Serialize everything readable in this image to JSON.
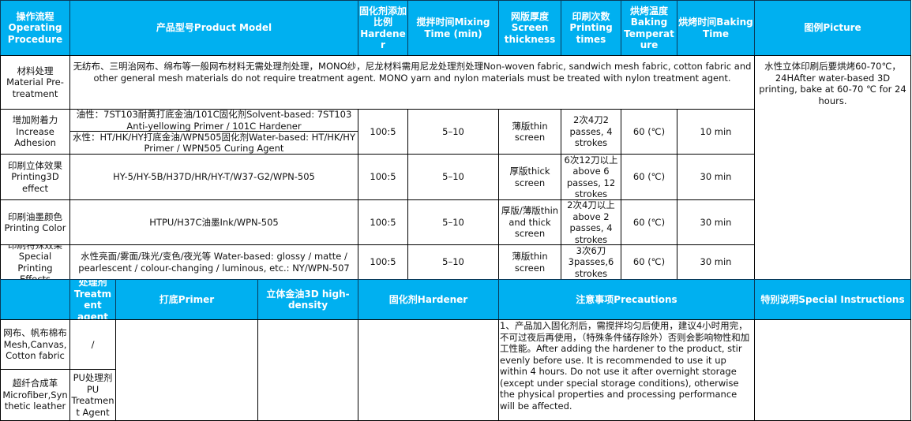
{
  "colors": {
    "header_bg": "#00b0f0",
    "header_text": "#ffffff",
    "border": "#000000"
  },
  "header": {
    "procedure": "操作流程 Operating Procedure",
    "model": "产品型号Product Model",
    "hardener": "固化剂添加比例Hardener",
    "mixing": "搅拌时间Mixing Time (min)",
    "screen": "网版厚度Screen thickness",
    "printing": "印刷次数Printing times",
    "temp": "烘烤温度Baking Temperature",
    "time": "烘烤时间Baking Time",
    "picture": "图例Picture"
  },
  "rows": [
    {
      "procedure": "材料处理 Material Pre-treatment",
      "model": "无纺布、三明治网布、绵布等一般网布材料无需处理剂处理，MONO纱，尼龙材料需用尼龙处理剂处理Non-woven fabric, sandwich mesh fabric, cotton fabric and other general mesh materials do not require treatment agent. MONO yarn and nylon materials must be treated with nylon treatment agent."
    },
    {
      "procedure": "增加附着力Increase Adhesion",
      "model_a": "油性：7ST103耐黄打底金油/101C固化剂Solvent-based: 7ST103 Anti-yellowing Primer / 101C Hardener",
      "model_b": "水性：HT/HK/HY打底金油/WPN505固化剂Water-based: HT/HK/HY Primer / WPN505 Curing Agent",
      "hardener": "100:5",
      "mixing": "5–10",
      "screen": "薄版thin screen",
      "printing": "2次4刀2 passes, 4 strokes",
      "temp": "60 (℃)",
      "time": "10 min"
    },
    {
      "procedure": "印刷立体效果Printing3D effect",
      "model": "HY-5/HY-5B/H37D/HR/HY-T/W37-G2/WPN-505",
      "hardener": "100:5",
      "mixing": "5–10",
      "screen": "厚版thick screen",
      "printing": "6次12刀以上above 6 passes, 12 strokes",
      "temp": "60 (℃)",
      "time": "30 min"
    },
    {
      "procedure": "印刷油墨颜色Printing Color",
      "model": "HTPU/H37C油墨Ink/WPN-505",
      "hardener": "100:5",
      "mixing": "5–10",
      "screen": "厚版/薄版thin and thick screen",
      "printing": "2次4刀以上above 2 passes, 4 strokes",
      "temp": "60 (℃)",
      "time": "30 min"
    },
    {
      "procedure": "印刷特殊效果Special Printing Effects",
      "model": "水性亮面/雾面/珠光/变色/夜光等 Water-based: glossy / matte / pearlescent / colour-changing / luminous, etc.: NY/WPN-507",
      "hardener": "100:5",
      "mixing": "5–10",
      "screen": "薄版thin screen",
      "printing": "3次6刀3passes,6 strokes",
      "temp": "60 (℃)",
      "time": "30 min"
    }
  ],
  "picture_note": "水性立体印刷后要烘烤60-70℃，24HAfter water-based 3D printing, bake at 60-70 ℃ for 24 hours.",
  "header2": {
    "blank": "",
    "treatment": "处理剂Treatment agent",
    "primer": "打底Primer",
    "hd": "立体金油3D high-density",
    "hardener": "固化剂Hardener",
    "precautions": "注意事项Precautions",
    "special": "特别说明Special Instructions"
  },
  "materials": [
    {
      "name": "网布、帆布棉布Mesh,Canvas, Cotton fabric",
      "treatment": "/"
    },
    {
      "name": "超纤合成革Microfiber,Synthetic leather",
      "treatment": "PU处理剂PU Treatment Agent"
    }
  ],
  "precautions_text": "1、产品加入固化剂后，需搅拌均匀后使用，建议4小时用完，不可过夜后再使用，（特殊条件储存除外）否则会影响物性和加工性能。After adding the hardener to the product, stir evenly before use. It is recommended to use it up within 4 hours. Do not use it after overnight storage (except under special storage conditions), otherwise the physical properties and processing performance will be affected."
}
